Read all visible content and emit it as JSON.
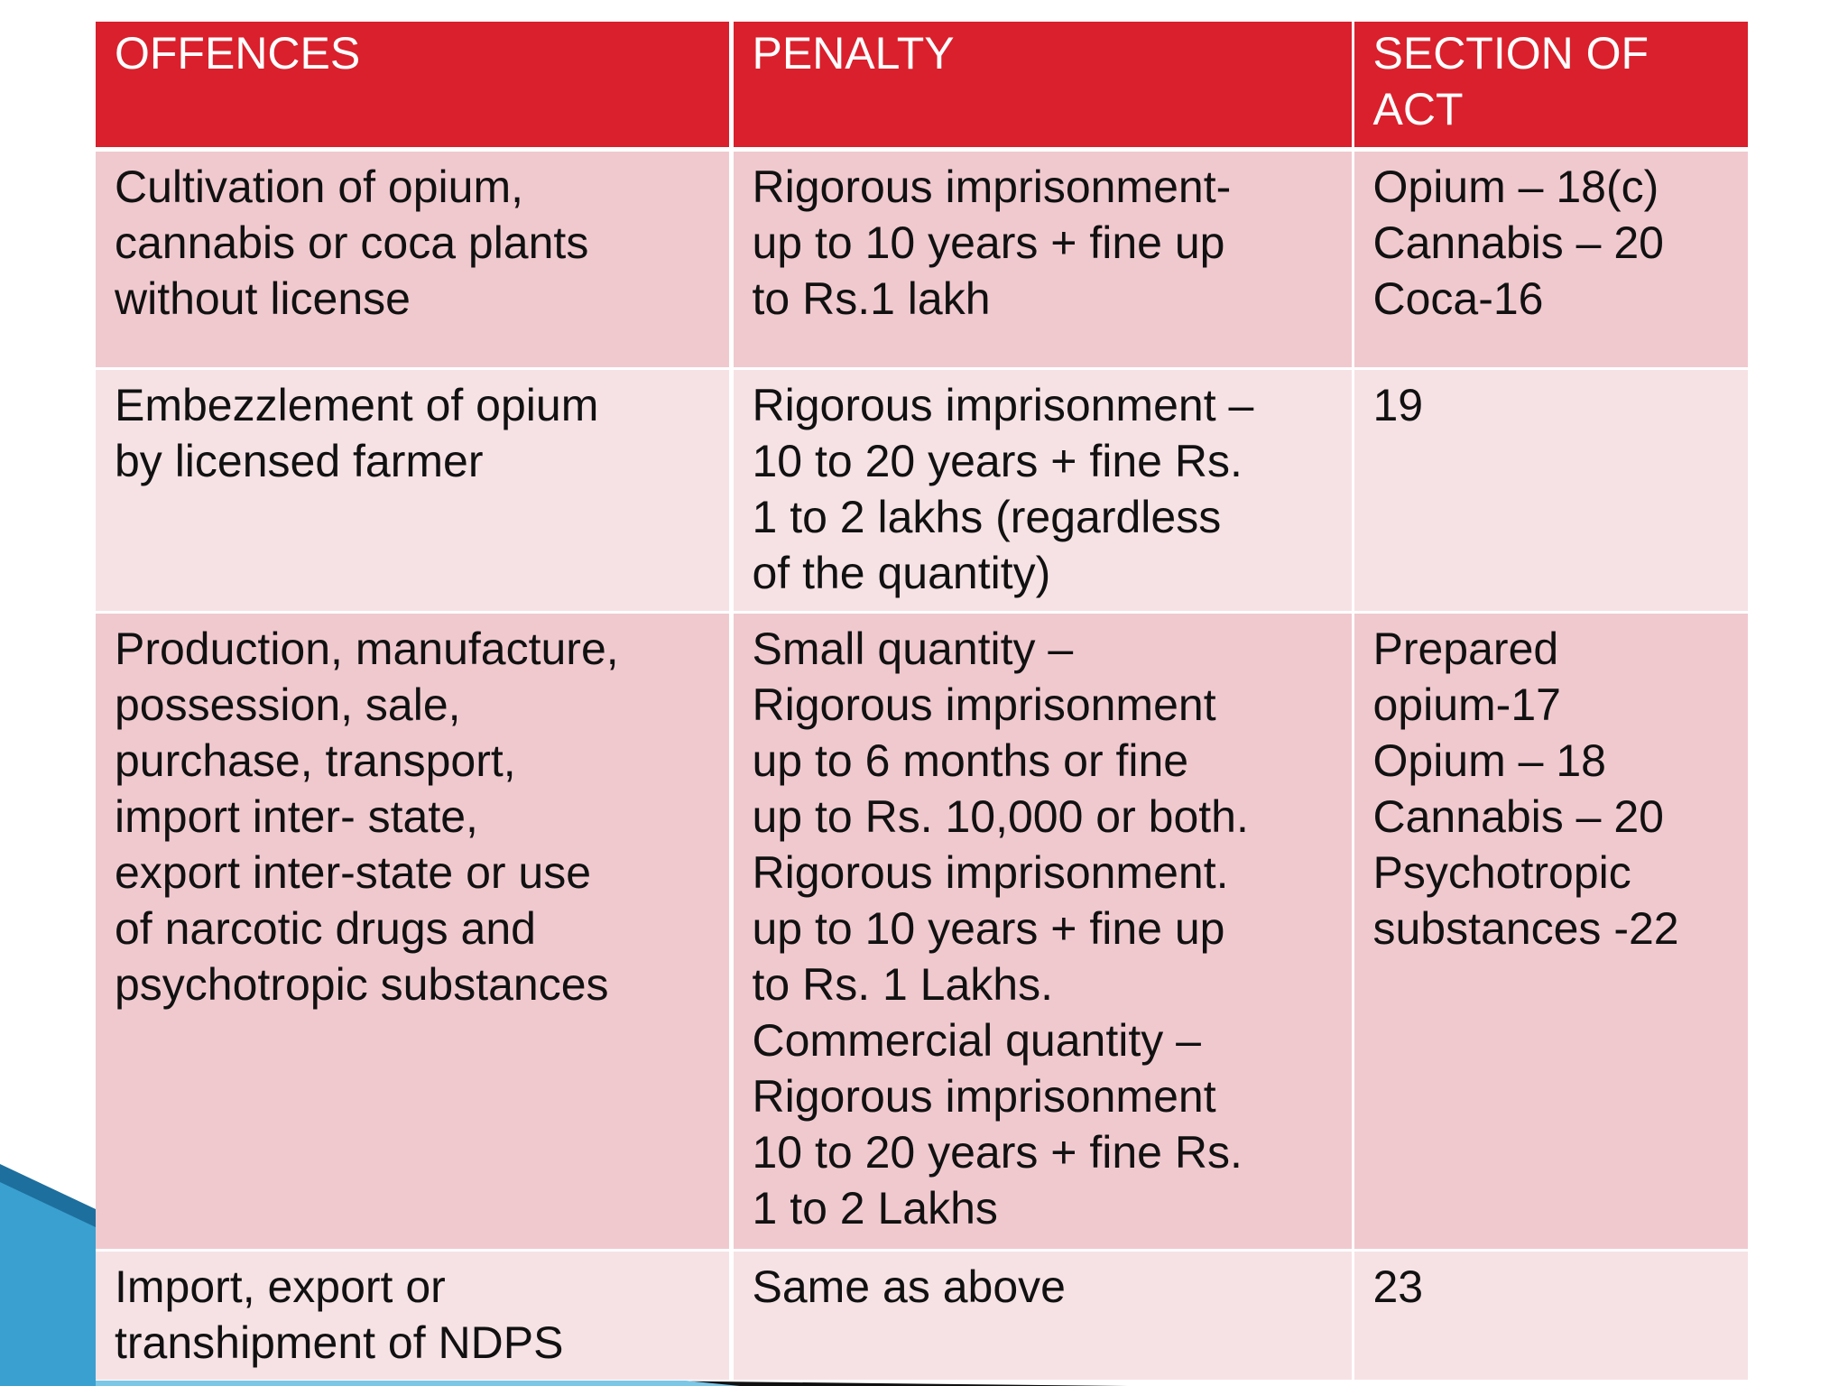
{
  "table": {
    "header": [
      "OFFENCES",
      [
        "PENALTY"
      ],
      [
        "SECTION OF",
        "ACT"
      ]
    ],
    "rows": [
      [
        [
          "Cultivation of opium,",
          "cannabis or coca plants",
          "without license"
        ],
        [
          "Rigorous imprisonment-",
          "up to 10 years + fine up",
          "to Rs.1 lakh"
        ],
        [
          "Opium – 18(c)",
          "Cannabis – 20",
          "Coca-16"
        ]
      ],
      [
        [
          "Embezzlement of opium",
          "by licensed farmer"
        ],
        [
          "Rigorous imprisonment –",
          "10 to 20 years + fine Rs.",
          "1 to 2 lakhs (regardless",
          "of the quantity)"
        ],
        [
          "19"
        ]
      ],
      [
        [
          "Production, manufacture,",
          "possession, sale,",
          "purchase, transport,",
          "import inter- state,",
          "export inter-state or use",
          "of narcotic drugs and",
          "psychotropic substances"
        ],
        [
          "Small quantity –",
          "Rigorous imprisonment",
          "up to 6 months or fine",
          "up to Rs. 10,000 or both.",
          "Rigorous imprisonment.",
          "up to 10 years + fine up",
          "to Rs. 1 Lakhs.",
          "Commercial quantity –",
          "Rigorous imprisonment",
          "10 to 20 years + fine Rs.",
          "1 to 2 Lakhs"
        ],
        [
          "Prepared",
          "opium-17",
          "Opium – 18",
          "Cannabis – 20",
          "Psychotropic",
          "substances -22"
        ]
      ],
      [
        [
          "Import, export or",
          "transhipment of NDPS"
        ],
        [
          "Same as above"
        ],
        [
          "23"
        ]
      ]
    ]
  }
}
